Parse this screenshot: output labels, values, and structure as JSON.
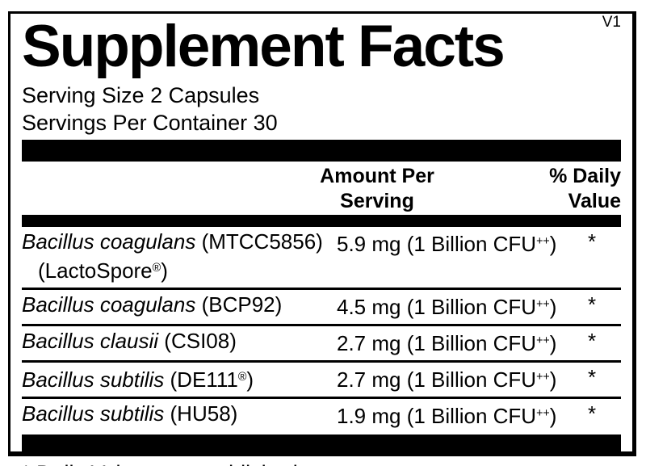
{
  "label": {
    "title": "Supplement Facts",
    "version": "V1",
    "serving": {
      "size": "Serving Size 2 Capsules",
      "per_container": "Servings Per Container 30"
    },
    "header": {
      "amount_col": [
        "Amount Per",
        "Serving"
      ],
      "dv_col": [
        "% Daily",
        "Value"
      ]
    },
    "rows": [
      {
        "name": [
          {
            "t": "Bacillus coagulans",
            "i": true
          },
          {
            "t": " (MTCC5856)"
          }
        ],
        "name_line2": [
          {
            "t": "(LactoSpore"
          },
          {
            "t": "®",
            "s": true
          },
          {
            "t": ")"
          }
        ],
        "amount": [
          {
            "t": "5.9 mg (1 Billion CFU"
          },
          {
            "t": "++",
            "s": true
          },
          {
            "t": ")"
          }
        ],
        "dv": "*"
      },
      {
        "name": [
          {
            "t": "Bacillus coagulans",
            "i": true
          },
          {
            "t": " (BCP92)"
          }
        ],
        "amount": [
          {
            "t": "4.5 mg (1 Billion CFU"
          },
          {
            "t": "++",
            "s": true
          },
          {
            "t": ")"
          }
        ],
        "dv": "*"
      },
      {
        "name": [
          {
            "t": "Bacillus clausii",
            "i": true
          },
          {
            "t": " (CSI08)"
          }
        ],
        "amount": [
          {
            "t": "2.7 mg (1 Billion CFU"
          },
          {
            "t": "++",
            "s": true
          },
          {
            "t": ")"
          }
        ],
        "dv": "*"
      },
      {
        "name": [
          {
            "t": "Bacillus subtilis",
            "i": true
          },
          {
            "t": " (DE111"
          },
          {
            "t": "®",
            "s": true
          },
          {
            "t": ")"
          }
        ],
        "amount": [
          {
            "t": "2.7 mg (1 Billion CFU"
          },
          {
            "t": "++",
            "s": true
          },
          {
            "t": ")"
          }
        ],
        "dv": "*"
      },
      {
        "name": [
          {
            "t": "Bacillus subtilis",
            "i": true
          },
          {
            "t": " (HU58)"
          }
        ],
        "amount": [
          {
            "t": "1.9 mg (1 Billion CFU"
          },
          {
            "t": "++",
            "s": true
          },
          {
            "t": ")"
          }
        ],
        "dv": "*"
      }
    ],
    "footnote": "* Daily Value not established.",
    "colors": {
      "ink": "#000000",
      "paper": "#ffffff"
    }
  }
}
